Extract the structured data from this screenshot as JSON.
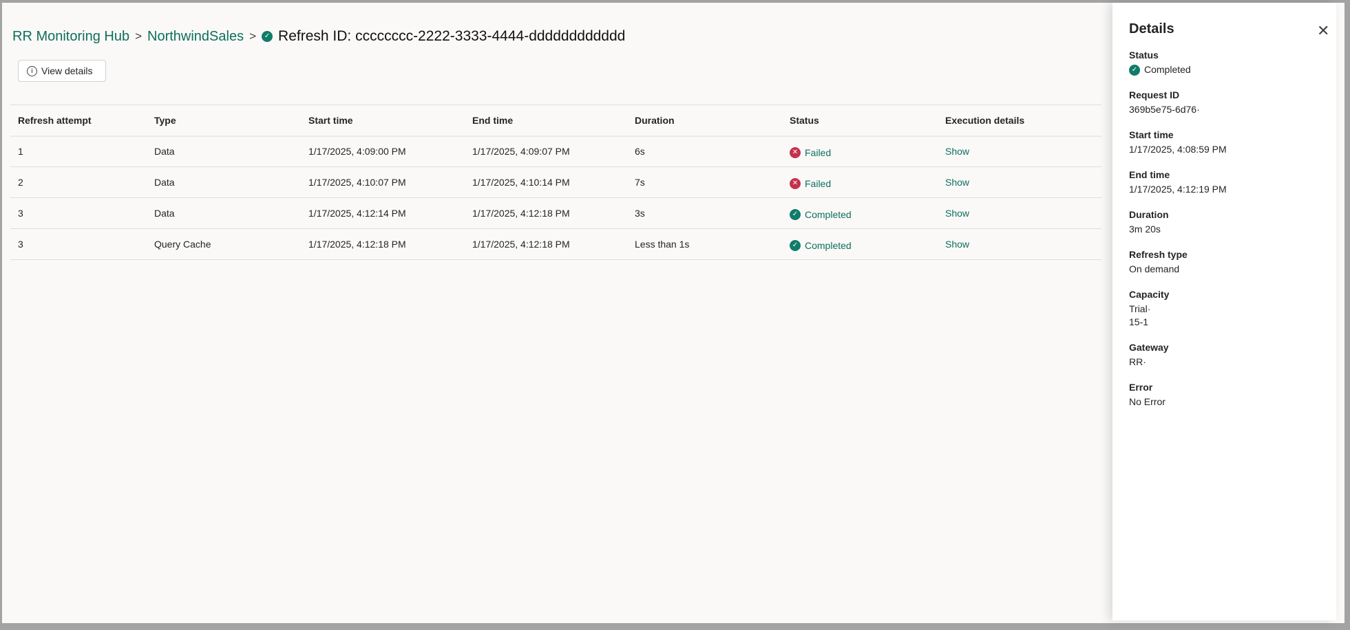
{
  "breadcrumb": {
    "items": [
      "RR Monitoring Hub",
      "NorthwindSales"
    ],
    "current": "Refresh ID: cccccccc-2222-3333-4444-dddddddddddd",
    "separator": ">"
  },
  "toolbar": {
    "view_details": "View details"
  },
  "table": {
    "columns": [
      "Refresh attempt",
      "Type",
      "Start time",
      "End time",
      "Duration",
      "Status",
      "Execution details"
    ],
    "rows": [
      {
        "attempt": "1",
        "type": "Data",
        "start": "1/17/2025, 4:09:00 PM",
        "end": "1/17/2025, 4:09:07 PM",
        "duration": "6s",
        "status": "Failed",
        "details": "Show"
      },
      {
        "attempt": "2",
        "type": "Data",
        "start": "1/17/2025, 4:10:07 PM",
        "end": "1/17/2025, 4:10:14 PM",
        "duration": "7s",
        "status": "Failed",
        "details": "Show"
      },
      {
        "attempt": "3",
        "type": "Data",
        "start": "1/17/2025, 4:12:14 PM",
        "end": "1/17/2025, 4:12:18 PM",
        "duration": "3s",
        "status": "Completed",
        "details": "Show"
      },
      {
        "attempt": "3",
        "type": "Query Cache",
        "start": "1/17/2025, 4:12:18 PM",
        "end": "1/17/2025, 4:12:18 PM",
        "duration": "Less than 1s",
        "status": "Completed",
        "details": "Show"
      }
    ]
  },
  "details": {
    "title": "Details",
    "fields": [
      {
        "label": "Status",
        "value": "Completed"
      },
      {
        "label": "Request ID",
        "value": "369b5e75-6d76·"
      },
      {
        "label": "Start time",
        "value": "1/17/2025, 4:08:59 PM"
      },
      {
        "label": "End time",
        "value": "1/17/2025, 4:12:19 PM"
      },
      {
        "label": "Duration",
        "value": "3m 20s"
      },
      {
        "label": "Refresh type",
        "value": "On demand"
      },
      {
        "label": "Capacity",
        "value": "Trial·",
        "value2": "15-1"
      },
      {
        "label": "Gateway",
        "value": "RR·"
      },
      {
        "label": "Error",
        "value": "No Error"
      }
    ]
  },
  "colors": {
    "accent": "#0e6e5c",
    "success": "#107c6a",
    "error": "#c4314b"
  }
}
